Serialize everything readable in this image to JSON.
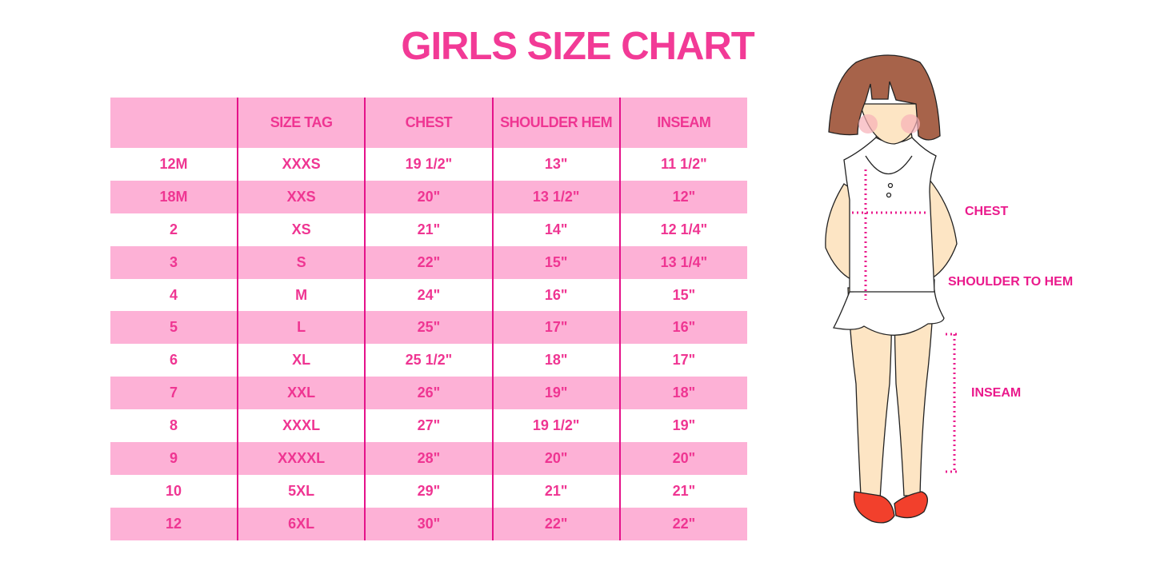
{
  "title": "GIRLS SIZE CHART",
  "table": {
    "headers": [
      "",
      "SIZE TAG",
      "CHEST",
      "SHOULDER HEM",
      "INSEAM"
    ],
    "rows": [
      [
        "12M",
        "XXXS",
        "19 1/2\"",
        "13\"",
        "11 1/2\""
      ],
      [
        "18M",
        "XXS",
        "20\"",
        "13 1/2\"",
        "12\""
      ],
      [
        "2",
        "XS",
        "21\"",
        "14\"",
        "12 1/4\""
      ],
      [
        "3",
        "S",
        "22\"",
        "15\"",
        "13 1/4\""
      ],
      [
        "4",
        "M",
        "24\"",
        "16\"",
        "15\""
      ],
      [
        "5",
        "L",
        "25\"",
        "17\"",
        "16\""
      ],
      [
        "6",
        "XL",
        "25 1/2\"",
        "18\"",
        "17\""
      ],
      [
        "7",
        "XXL",
        "26\"",
        "19\"",
        "18\""
      ],
      [
        "8",
        "XXXL",
        "27\"",
        "19 1/2\"",
        "19\""
      ],
      [
        "9",
        "XXXXL",
        "28\"",
        "20\"",
        "20\""
      ],
      [
        "10",
        "5XL",
        "29\"",
        "21\"",
        "21\""
      ],
      [
        "12",
        "6XL",
        "30\"",
        "22\"",
        "22\""
      ]
    ]
  },
  "figure": {
    "labels": {
      "chest": "CHEST",
      "shoulder_to_hem": "SHOULDER TO HEM",
      "inseam": "INSEAM"
    }
  },
  "colors": {
    "accent": "#ef3592",
    "row_pink": "#fdb1d6",
    "divider": "#e5128a"
  }
}
